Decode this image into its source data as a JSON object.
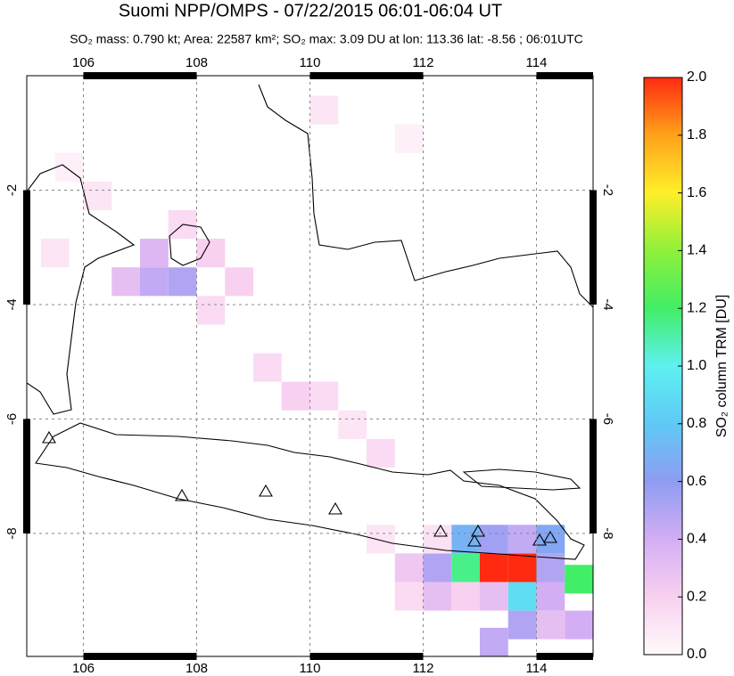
{
  "chart_data": {
    "type": "map",
    "title": "Suomi NPP/OMPS - 07/22/2015 06:01-06:04 UT",
    "subtitle": "SO₂ mass: 0.790 kt; Area: 22587 km²; SO₂ max: 3.09 DU at lon: 113.36 lat: -8.56 ; 06:01UTC",
    "xlim": [
      105,
      115
    ],
    "ylim": [
      -10.15,
      0
    ],
    "xticks": [
      106,
      108,
      110,
      112,
      114
    ],
    "yticks": [
      -2,
      -4,
      -6,
      -8
    ],
    "grid": true,
    "cells": [
      {
        "lon": 113.25,
        "lat": -8.6,
        "value": 2.0
      },
      {
        "lon": 113.75,
        "lat": -8.6,
        "value": 2.0
      },
      {
        "lon": 112.75,
        "lat": -8.6,
        "value": 1.15
      },
      {
        "lon": 112.25,
        "lat": -8.6,
        "value": 0.5
      },
      {
        "lon": 114.25,
        "lat": -8.6,
        "value": 0.5
      },
      {
        "lon": 114.25,
        "lat": -8.1,
        "value": 0.65
      },
      {
        "lon": 113.75,
        "lat": -8.1,
        "value": 0.45
      },
      {
        "lon": 113.25,
        "lat": -8.1,
        "value": 0.55
      },
      {
        "lon": 112.75,
        "lat": -8.1,
        "value": 0.7
      },
      {
        "lon": 113.75,
        "lat": -9.1,
        "value": 0.9
      },
      {
        "lon": 113.25,
        "lat": -9.1,
        "value": 0.3
      },
      {
        "lon": 112.75,
        "lat": -9.1,
        "value": 0.2
      },
      {
        "lon": 114.25,
        "lat": -9.1,
        "value": 0.4
      },
      {
        "lon": 114.75,
        "lat": -8.8,
        "value": 1.2
      },
      {
        "lon": 114.75,
        "lat": -9.6,
        "value": 0.4
      },
      {
        "lon": 114.25,
        "lat": -9.6,
        "value": 0.3
      },
      {
        "lon": 113.75,
        "lat": -9.6,
        "value": 0.5
      },
      {
        "lon": 113.25,
        "lat": -9.9,
        "value": 0.45
      },
      {
        "lon": 111.75,
        "lat": -8.6,
        "value": 0.25
      },
      {
        "lon": 111.75,
        "lat": -9.1,
        "value": 0.15
      },
      {
        "lon": 112.25,
        "lat": -9.1,
        "value": 0.3
      },
      {
        "lon": 111.25,
        "lat": -8.1,
        "value": 0.1
      },
      {
        "lon": 112.25,
        "lat": -8.1,
        "value": 0.12
      },
      {
        "lon": 107.25,
        "lat": -3.6,
        "value": 0.45
      },
      {
        "lon": 107.75,
        "lat": -3.6,
        "value": 0.5
      },
      {
        "lon": 107.25,
        "lat": -3.1,
        "value": 0.35
      },
      {
        "lon": 106.75,
        "lat": -3.6,
        "value": 0.3
      },
      {
        "lon": 108.25,
        "lat": -3.1,
        "value": 0.2
      },
      {
        "lon": 108.75,
        "lat": -3.6,
        "value": 0.2
      },
      {
        "lon": 108.25,
        "lat": -4.1,
        "value": 0.15
      },
      {
        "lon": 109.25,
        "lat": -5.1,
        "value": 0.15
      },
      {
        "lon": 109.75,
        "lat": -5.6,
        "value": 0.2
      },
      {
        "lon": 110.25,
        "lat": -5.6,
        "value": 0.15
      },
      {
        "lon": 110.75,
        "lat": -6.1,
        "value": 0.1
      },
      {
        "lon": 106.25,
        "lat": -2.1,
        "value": 0.1
      },
      {
        "lon": 105.75,
        "lat": -1.6,
        "value": 0.05
      },
      {
        "lon": 107.75,
        "lat": -2.6,
        "value": 0.15
      },
      {
        "lon": 105.5,
        "lat": -3.1,
        "value": 0.1
      },
      {
        "lon": 111.25,
        "lat": -6.6,
        "value": 0.15
      },
      {
        "lon": 110.25,
        "lat": -0.6,
        "value": 0.1
      },
      {
        "lon": 111.75,
        "lat": -1.1,
        "value": 0.05
      }
    ],
    "colorbar": {
      "label": "SO₂ column TRM [DU]",
      "lim": [
        0,
        2
      ],
      "colors": [
        "#fffafa",
        "#f8d0f0",
        "#d3aef4",
        "#8f9cf2",
        "#5fc9f6",
        "#5ef0f0",
        "#42ee66",
        "#8ef03a",
        "#ffef2a",
        "#ffa21a",
        "#ff2a10"
      ],
      "ticks": [
        {
          "value": 0,
          "label": "0.0"
        },
        {
          "value": 0.2,
          "label": "0.2"
        },
        {
          "value": 0.4,
          "label": "0.4"
        },
        {
          "value": 0.6,
          "label": "0.6"
        },
        {
          "value": 0.8,
          "label": "0.8"
        },
        {
          "value": 1,
          "label": "1.0"
        },
        {
          "value": 1.2,
          "label": "1.2"
        },
        {
          "value": 1.4,
          "label": "1.4"
        },
        {
          "value": 1.6,
          "label": "1.6"
        },
        {
          "value": 1.8,
          "label": "1.8"
        },
        {
          "value": 2,
          "label": "2.0"
        }
      ]
    }
  }
}
